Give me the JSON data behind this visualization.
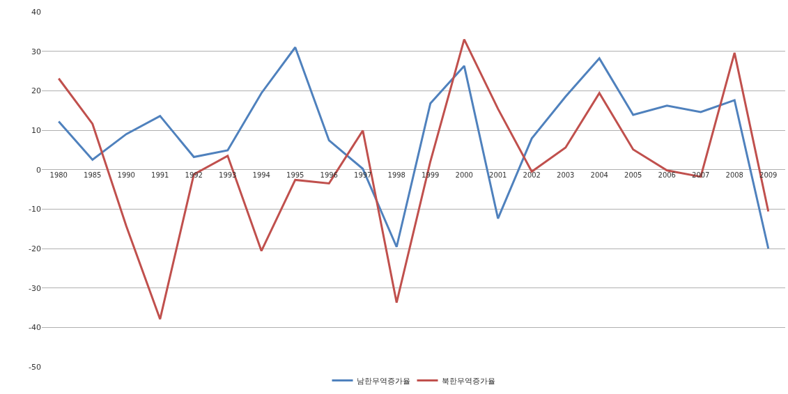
{
  "chart_data": {
    "type": "line",
    "categories": [
      "1980",
      "1985",
      "1990",
      "1991",
      "1992",
      "1993",
      "1994",
      "1995",
      "1996",
      "1997",
      "1998",
      "1999",
      "2000",
      "2001",
      "2002",
      "2003",
      "2004",
      "2005",
      "2006",
      "2007",
      "2008",
      "2009"
    ],
    "series": [
      {
        "name": "남한무역증가율",
        "color": "#4f81bd",
        "values": [
          12.2,
          2.5,
          9,
          13.6,
          3.2,
          4.9,
          19.4,
          31,
          7.4,
          0.2,
          -19.6,
          16.8,
          26.3,
          -12.4,
          7.9,
          18.5,
          28.2,
          13.9,
          16.2,
          14.6,
          17.6,
          -20
        ]
      },
      {
        "name": "북한무역증가율",
        "color": "#c0504d",
        "values": [
          23.1,
          11.6,
          -14.3,
          -37.9,
          -1.2,
          3.5,
          -20.6,
          -2.6,
          -3.5,
          9.9,
          -33.7,
          2.1,
          33,
          15.4,
          -0.5,
          5.6,
          19.4,
          5.1,
          -0.2,
          -1.8,
          29.6,
          -10.6
        ]
      }
    ],
    "ylim": [
      -50,
      40
    ],
    "yticks": [
      -50,
      -40,
      -30,
      -20,
      -10,
      0,
      10,
      20,
      30,
      40
    ],
    "grid": "y",
    "legend": "bottom",
    "marker": "none",
    "line_style": "solid"
  }
}
